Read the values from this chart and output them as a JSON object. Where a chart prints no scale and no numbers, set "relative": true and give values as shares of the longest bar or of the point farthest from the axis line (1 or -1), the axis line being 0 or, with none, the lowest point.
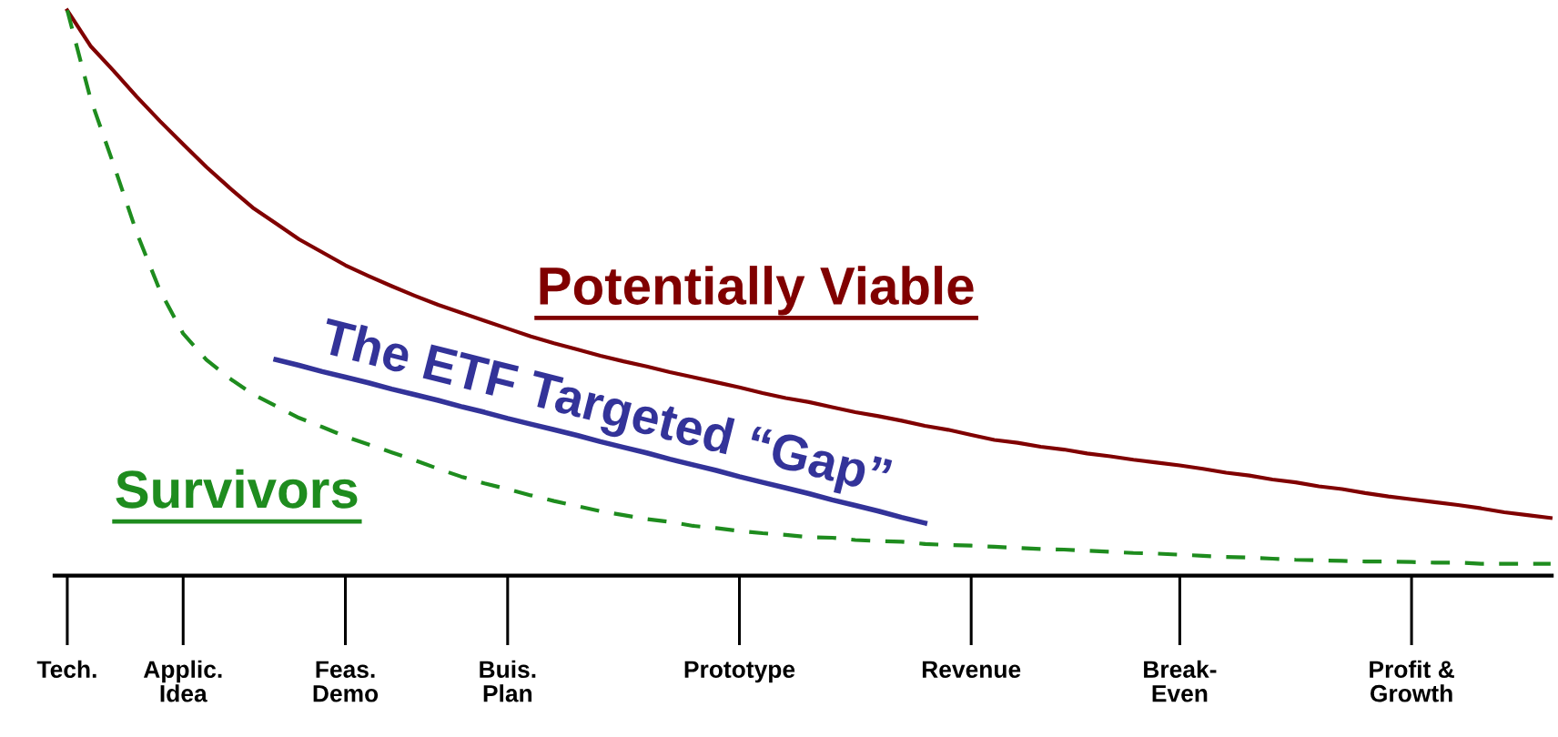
{
  "chart_data": {
    "type": "line",
    "relative": true,
    "legend": false,
    "grid": false,
    "marker": "none",
    "categories": [
      "Tech.",
      null,
      null,
      null,
      null,
      "Applic.\nIdea",
      null,
      null,
      null,
      null,
      null,
      null,
      "Feas.\nDemo",
      null,
      null,
      null,
      null,
      null,
      null,
      "Buis.\nPlan",
      null,
      null,
      null,
      null,
      null,
      null,
      null,
      null,
      null,
      "Prototype",
      null,
      null,
      null,
      null,
      null,
      null,
      null,
      null,
      null,
      "Revenue",
      null,
      null,
      null,
      null,
      null,
      null,
      null,
      null,
      "Break-\nEven",
      null,
      null,
      null,
      null,
      null,
      null,
      null,
      null,
      null,
      "Profit &\nGrowth",
      null,
      null,
      null,
      null,
      null,
      null
    ],
    "series": [
      {
        "name": "Potentially Viable",
        "color": "#800000",
        "line_style": "solid",
        "values": [
          1.0,
          0.937,
          0.893,
          0.847,
          0.804,
          0.763,
          0.723,
          0.686,
          0.651,
          0.623,
          0.595,
          0.572,
          0.549,
          0.53,
          0.512,
          0.495,
          0.479,
          0.465,
          0.451,
          0.437,
          0.423,
          0.411,
          0.4,
          0.389,
          0.379,
          0.37,
          0.36,
          0.351,
          0.342,
          0.333,
          0.323,
          0.314,
          0.307,
          0.298,
          0.289,
          0.282,
          0.274,
          0.265,
          0.258,
          0.249,
          0.24,
          0.235,
          0.228,
          0.223,
          0.216,
          0.211,
          0.205,
          0.2,
          0.195,
          0.189,
          0.182,
          0.177,
          0.17,
          0.165,
          0.158,
          0.153,
          0.146,
          0.14,
          0.135,
          0.13,
          0.125,
          0.119,
          0.112,
          0.107,
          0.102
        ]
      },
      {
        "name": "Survivors",
        "color": "#1e8c1e",
        "line_style": "dashed",
        "values": [
          1.0,
          0.844,
          0.727,
          0.606,
          0.504,
          0.428,
          0.382,
          0.349,
          0.321,
          0.3,
          0.279,
          0.263,
          0.246,
          0.232,
          0.218,
          0.204,
          0.189,
          0.175,
          0.163,
          0.153,
          0.142,
          0.132,
          0.123,
          0.114,
          0.107,
          0.1,
          0.095,
          0.088,
          0.084,
          0.079,
          0.075,
          0.072,
          0.068,
          0.067,
          0.063,
          0.061,
          0.06,
          0.056,
          0.054,
          0.053,
          0.051,
          0.049,
          0.047,
          0.046,
          0.044,
          0.042,
          0.04,
          0.039,
          0.037,
          0.035,
          0.033,
          0.032,
          0.03,
          0.028,
          0.027,
          0.026,
          0.025,
          0.025,
          0.024,
          0.023,
          0.023,
          0.021,
          0.021,
          0.021,
          0.021
        ]
      },
      {
        "name": "The ETF Targeted “Gap”",
        "color": "#333399",
        "line_style": "solid",
        "values": [
          null,
          null,
          null,
          null,
          null,
          null,
          null,
          null,
          null,
          0.382,
          0.372,
          0.361,
          0.351,
          0.341,
          0.33,
          0.32,
          0.31,
          0.299,
          0.289,
          0.278,
          0.268,
          0.258,
          0.248,
          0.237,
          0.227,
          0.217,
          0.206,
          0.196,
          0.186,
          0.175,
          0.165,
          0.155,
          0.145,
          0.134,
          0.124,
          0.114,
          0.103,
          0.093,
          null,
          null,
          null,
          null,
          null,
          null,
          null,
          null,
          null,
          null,
          null,
          null,
          null,
          null,
          null,
          null,
          null,
          null,
          null,
          null,
          null,
          null,
          null,
          null,
          null,
          null,
          null
        ]
      }
    ]
  }
}
